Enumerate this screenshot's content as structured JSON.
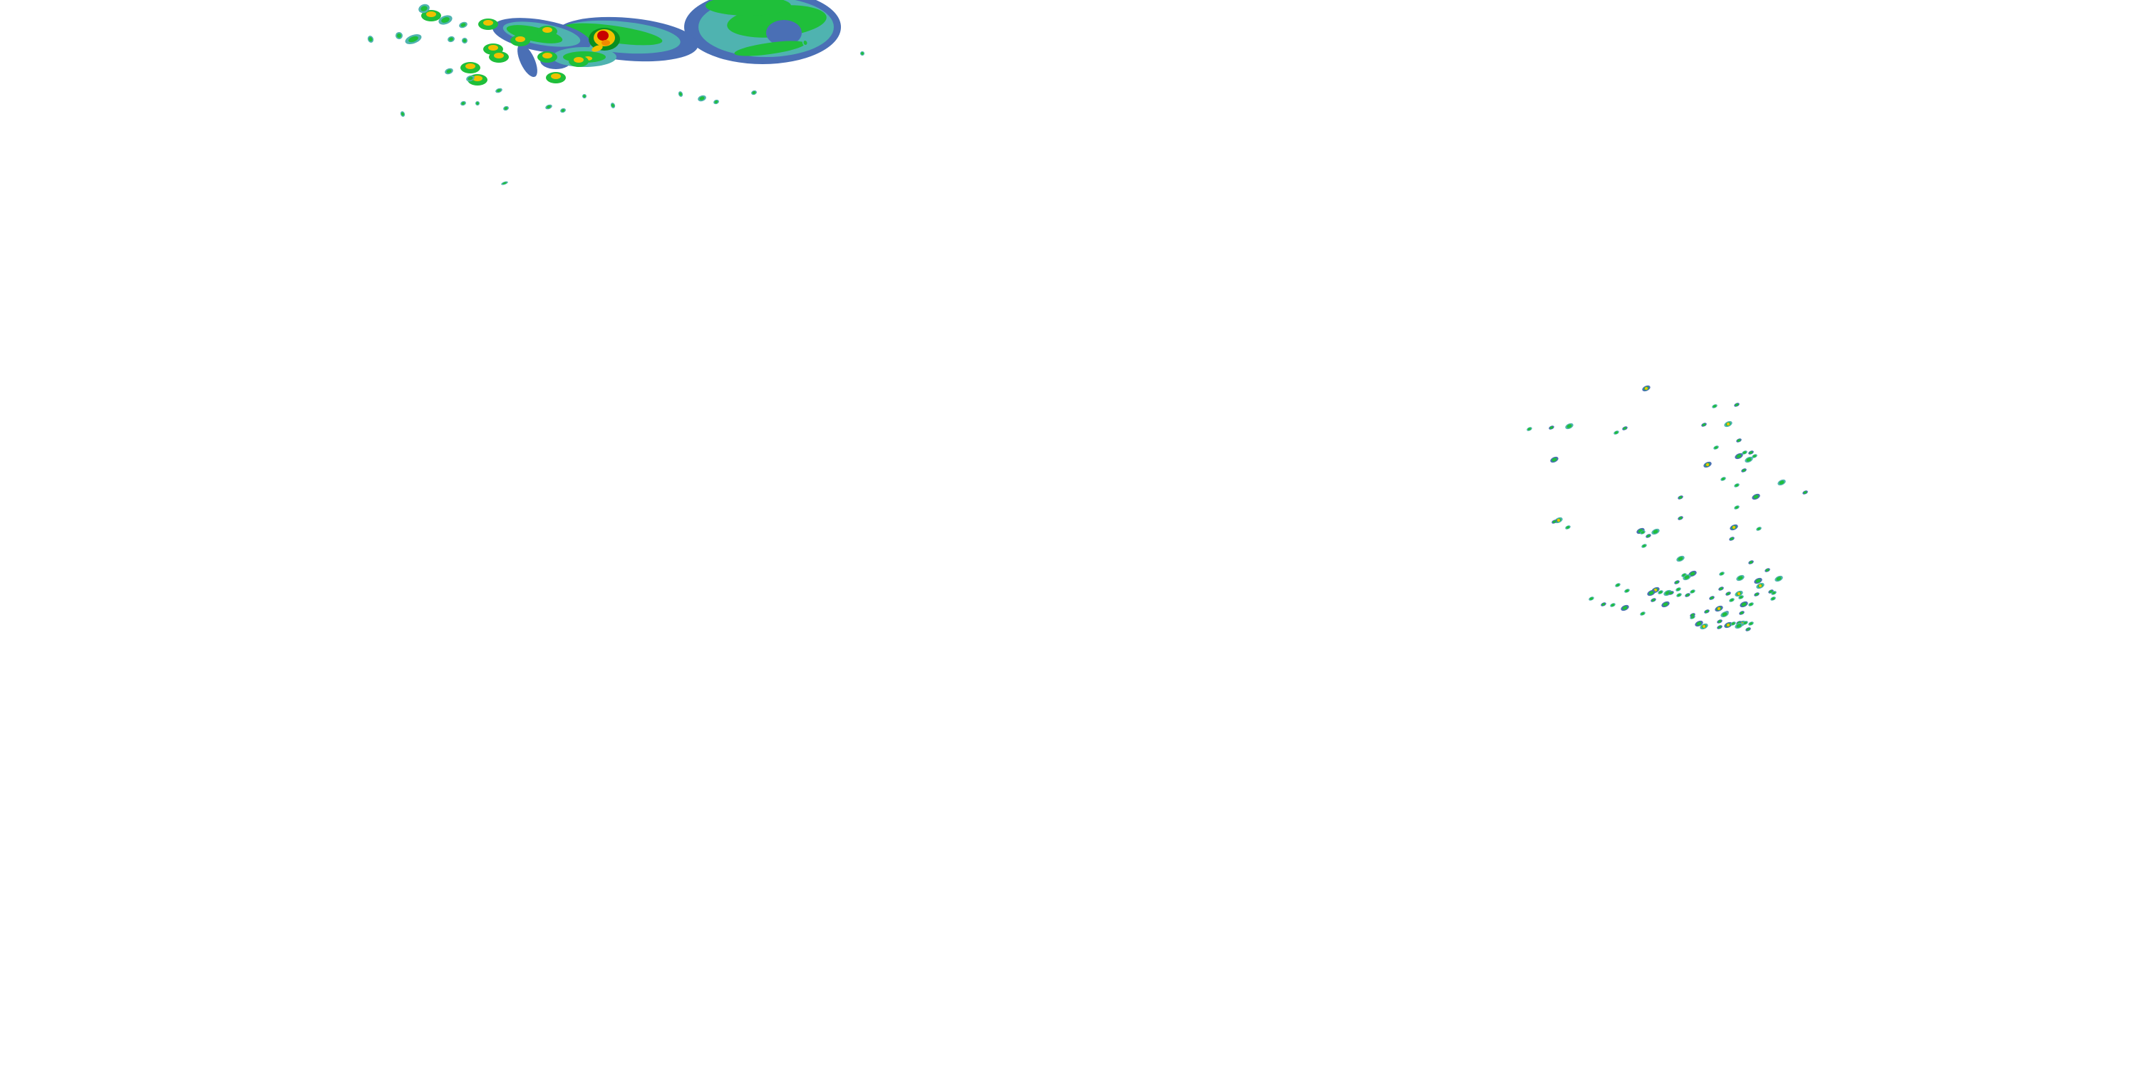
{
  "map": {
    "layer": "radar-reflectivity",
    "background": "#ffffff",
    "palette": {
      "light": "#4a6fb5",
      "light_teal": "#4fb3b0",
      "moderate": "#1fbf3a",
      "moderate_dark": "#0a8f1f",
      "heavy": "#f0c000",
      "very_heavy": "#f08a00",
      "intense": "#c80000"
    }
  }
}
